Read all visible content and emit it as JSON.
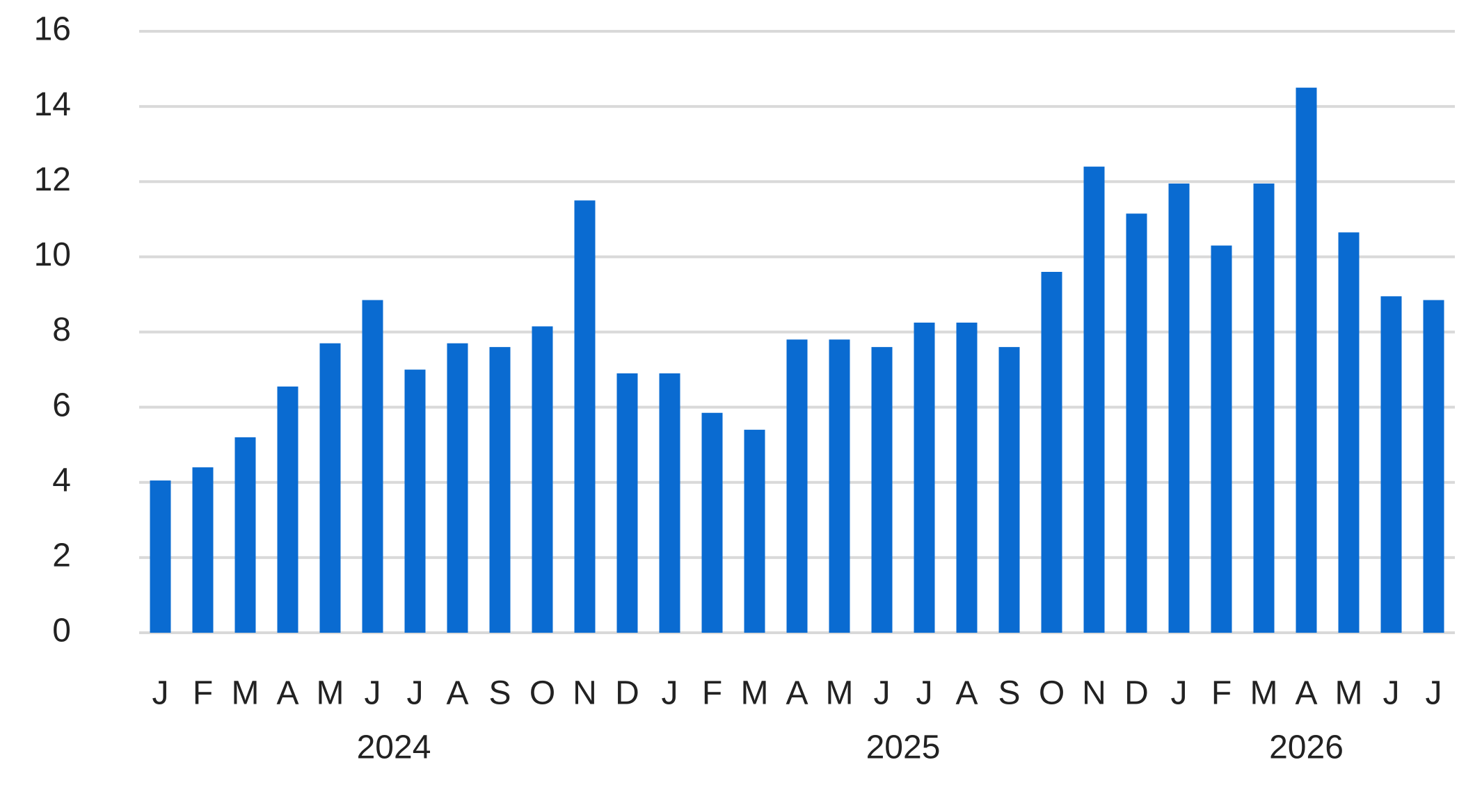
{
  "chart_data": {
    "type": "bar",
    "groups": [
      {
        "name": "2024",
        "categories": [
          "J",
          "F",
          "M",
          "A",
          "M",
          "J",
          "J",
          "A",
          "S",
          "O",
          "N",
          "D"
        ]
      },
      {
        "name": "2025",
        "categories": [
          "J",
          "F",
          "M",
          "A",
          "M",
          "J",
          "J",
          "A",
          "S",
          "O",
          "N",
          "D"
        ]
      },
      {
        "name": "2026",
        "categories": [
          "J",
          "F",
          "M",
          "A",
          "M",
          "J",
          "J"
        ]
      }
    ],
    "values": [
      4.05,
      4.4,
      5.2,
      6.55,
      7.7,
      8.85,
      7.0,
      7.7,
      7.6,
      8.15,
      11.5,
      6.9,
      6.9,
      5.85,
      5.4,
      7.8,
      7.8,
      7.6,
      8.25,
      8.25,
      7.6,
      9.6,
      12.4,
      11.15,
      11.95,
      10.3,
      11.95,
      14.5,
      10.65,
      8.95,
      8.85
    ],
    "color": "#0a6bd1",
    "ylim": [
      0,
      16
    ],
    "yticks": [
      0,
      2,
      4,
      6,
      8,
      10,
      12,
      14,
      16
    ],
    "grid": true
  }
}
